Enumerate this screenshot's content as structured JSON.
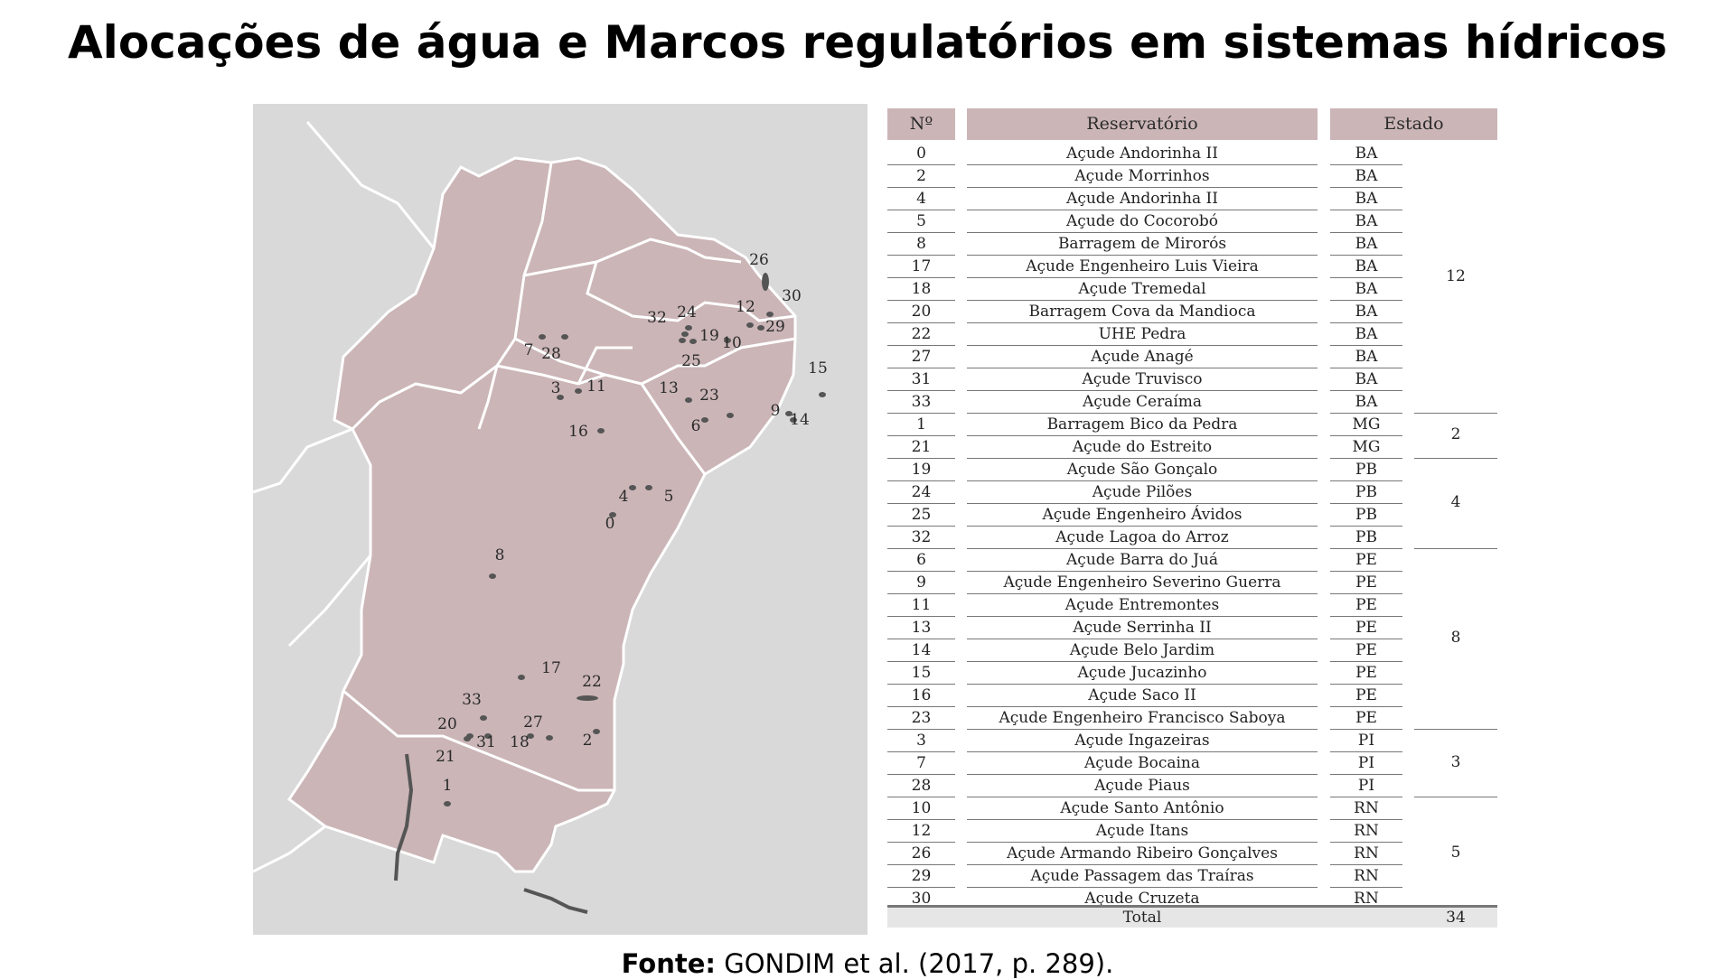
{
  "title": "Alocações de água e Marcos regulatórios em sistemas hídricos",
  "source": {
    "label": "Fonte:",
    "text": "GONDIM et al. (2017, p. 289)."
  },
  "colors": {
    "region": "#cbb5b7",
    "land": "#d9d9d9",
    "reservoir": "#555555",
    "header": "#cbb5b7"
  },
  "table": {
    "headers": {
      "num": "Nº",
      "reservoir": "Reservatório",
      "state": "Estado"
    },
    "rows": [
      {
        "n": "0",
        "name": "Açude Andorinha II",
        "uf": "BA"
      },
      {
        "n": "2",
        "name": "Açude Morrinhos",
        "uf": "BA"
      },
      {
        "n": "4",
        "name": "Açude Andorinha II",
        "uf": "BA"
      },
      {
        "n": "5",
        "name": "Açude do Cocorobó",
        "uf": "BA"
      },
      {
        "n": "8",
        "name": "Barragem de Mirorós",
        "uf": "BA"
      },
      {
        "n": "17",
        "name": "Açude Engenheiro Luis Vieira",
        "uf": "BA"
      },
      {
        "n": "18",
        "name": "Açude Tremedal",
        "uf": "BA"
      },
      {
        "n": "20",
        "name": "Barragem Cova da Mandioca",
        "uf": "BA"
      },
      {
        "n": "22",
        "name": "UHE Pedra",
        "uf": "BA"
      },
      {
        "n": "27",
        "name": "Açude Anagé",
        "uf": "BA"
      },
      {
        "n": "31",
        "name": "Açude Truvisco",
        "uf": "BA"
      },
      {
        "n": "33",
        "name": "Açude Ceraíma",
        "uf": "BA"
      },
      {
        "n": "1",
        "name": "Barragem Bico da Pedra",
        "uf": "MG"
      },
      {
        "n": "21",
        "name": "Açude do Estreito",
        "uf": "MG"
      },
      {
        "n": "19",
        "name": "Açude São Gonçalo",
        "uf": "PB"
      },
      {
        "n": "24",
        "name": "Açude Pilões",
        "uf": "PB"
      },
      {
        "n": "25",
        "name": "Açude Engenheiro Ávidos",
        "uf": "PB"
      },
      {
        "n": "32",
        "name": "Açude Lagoa do Arroz",
        "uf": "PB"
      },
      {
        "n": "6",
        "name": "Açude Barra do Juá",
        "uf": "PE"
      },
      {
        "n": "9",
        "name": "Açude Engenheiro Severino Guerra",
        "uf": "PE"
      },
      {
        "n": "11",
        "name": "Açude Entremontes",
        "uf": "PE"
      },
      {
        "n": "13",
        "name": "Açude Serrinha II",
        "uf": "PE"
      },
      {
        "n": "14",
        "name": "Açude Belo Jardim",
        "uf": "PE"
      },
      {
        "n": "15",
        "name": "Açude Jucazinho",
        "uf": "PE"
      },
      {
        "n": "16",
        "name": "Açude Saco II",
        "uf": "PE"
      },
      {
        "n": "23",
        "name": "Açude Engenheiro Francisco Saboya",
        "uf": "PE"
      },
      {
        "n": "3",
        "name": "Açude Ingazeiras",
        "uf": "PI"
      },
      {
        "n": "7",
        "name": "Açude Bocaina",
        "uf": "PI"
      },
      {
        "n": "28",
        "name": "Açude Piaus",
        "uf": "PI"
      },
      {
        "n": "10",
        "name": "Açude Santo Antônio",
        "uf": "RN"
      },
      {
        "n": "12",
        "name": "Açude Itans",
        "uf": "RN"
      },
      {
        "n": "26",
        "name": "Açude Armando Ribeiro Gonçalves",
        "uf": "RN"
      },
      {
        "n": "29",
        "name": "Açude Passagem das Traíras",
        "uf": "RN"
      },
      {
        "n": "30",
        "name": "Açude Cruzeta",
        "uf": "RN"
      }
    ],
    "groups": [
      {
        "count": "12",
        "rows": 12
      },
      {
        "count": "2",
        "rows": 2
      },
      {
        "count": "4",
        "rows": 4
      },
      {
        "count": "8",
        "rows": 8
      },
      {
        "count": "3",
        "rows": 3
      },
      {
        "count": "5",
        "rows": 5
      }
    ],
    "total": {
      "label": "Total",
      "value": "34"
    }
  },
  "map": {
    "labels": [
      "0",
      "1",
      "2",
      "3",
      "4",
      "5",
      "6",
      "7",
      "8",
      "9",
      "10",
      "11",
      "12",
      "13",
      "14",
      "15",
      "16",
      "17",
      "18",
      "19",
      "20",
      "21",
      "22",
      "23",
      "24",
      "25",
      "26",
      "27",
      "28",
      "29",
      "30",
      "31",
      "32",
      "33"
    ]
  }
}
